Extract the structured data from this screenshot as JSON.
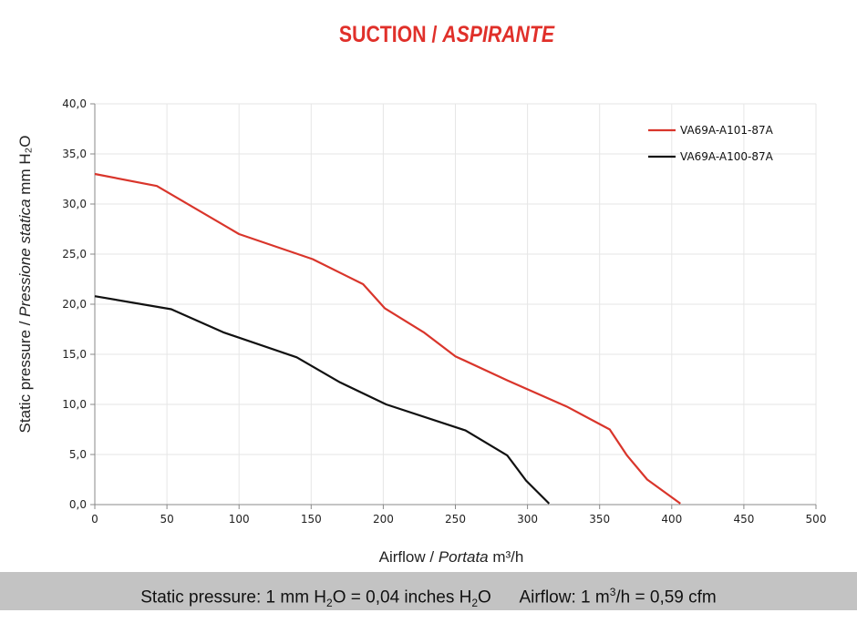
{
  "chart_data": {
    "type": "line",
    "title": "SUCTION",
    "title_italic": "ASPIRANTE",
    "xlabel": "Airflow",
    "xlabel_italic": "Portata",
    "xlabel_unit": "m³/h",
    "ylabel": "Static pressure",
    "ylabel_italic": "Pressione statica",
    "ylabel_unit": "mm H₂O",
    "xlim": [
      0,
      500
    ],
    "ylim": [
      0,
      40
    ],
    "x_ticks": [
      "0",
      "50",
      "100",
      "150",
      "200",
      "250",
      "300",
      "350",
      "400",
      "450",
      "500"
    ],
    "y_ticks": [
      "0,0",
      "5,0",
      "10,0",
      "15,0",
      "20,0",
      "25,0",
      "30,0",
      "35,0",
      "40,0"
    ],
    "grid": true,
    "legend_position": "top-right",
    "series": [
      {
        "name": "VA69A-A101-87A",
        "color": "#d9352b",
        "x": [
          0,
          43,
          100,
          151,
          186,
          201,
          228,
          250,
          286,
          327,
          357,
          369,
          383,
          406
        ],
        "y": [
          33.0,
          31.8,
          27.0,
          24.5,
          22.0,
          19.6,
          17.2,
          14.8,
          12.4,
          9.8,
          7.5,
          4.9,
          2.5,
          0.1
        ]
      },
      {
        "name": "VA69A-A100-87A",
        "color": "#111111",
        "x": [
          0,
          53,
          89,
          140,
          170,
          202,
          257,
          286,
          299,
          315
        ],
        "y": [
          20.8,
          19.5,
          17.2,
          14.7,
          12.2,
          10.0,
          7.4,
          4.9,
          2.4,
          0.1
        ]
      }
    ]
  },
  "footer": {
    "pressure_text": "Static pressure: 1 mm H",
    "pressure_sub": "2",
    "pressure_mid": "O = 0,04 inches H",
    "pressure_sub2": "2",
    "pressure_end": "O",
    "airflow_text": "Airflow: 1 m",
    "airflow_sup": "3",
    "airflow_end": "/h = 0,59 cfm"
  }
}
